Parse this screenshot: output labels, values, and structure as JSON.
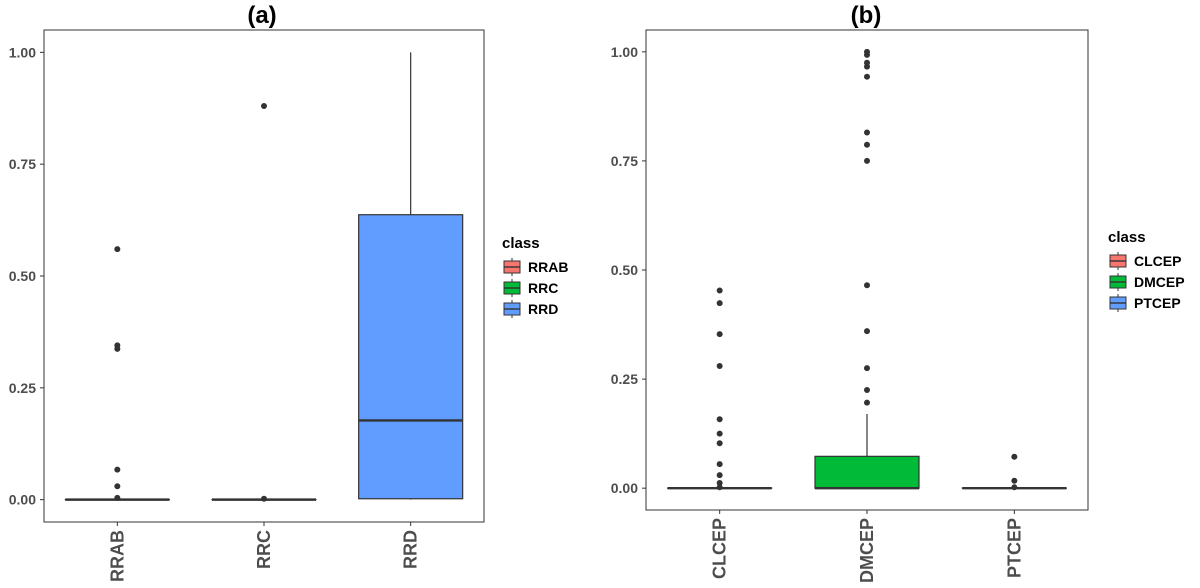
{
  "chart_data": [
    {
      "type": "box",
      "title": "(a)",
      "xlabel": "",
      "ylabel": "",
      "ylim": [
        -0.05,
        1.05
      ],
      "yticks": [
        0,
        0.25,
        0.5,
        0.75,
        1
      ],
      "ytick_labels": [
        "0.00",
        "0.25",
        "0.50",
        "0.75",
        "1.00"
      ],
      "categories": [
        "RRAB",
        "RRC",
        "RRD"
      ],
      "legend_title": "class",
      "legend_position": "right",
      "series": [
        {
          "name": "RRAB",
          "color": "#f8766d",
          "min": 0,
          "q1": 0,
          "median": 0,
          "q3": 0,
          "max": 0,
          "outliers": [
            0.56,
            0.345,
            0.337,
            0.067,
            0.03,
            0.004
          ]
        },
        {
          "name": "RRC",
          "color": "#00ba38",
          "min": 0,
          "q1": 0,
          "median": 0,
          "q3": 0,
          "max": 0,
          "outliers": [
            0.88,
            0.002
          ]
        },
        {
          "name": "RRD",
          "color": "#619cff",
          "min": 0,
          "q1": 0.002,
          "median": 0.177,
          "q3": 0.637,
          "max": 1.0,
          "outliers": []
        }
      ]
    },
    {
      "type": "box",
      "title": "(b)",
      "xlabel": "",
      "ylabel": "",
      "ylim": [
        -0.05,
        1.05
      ],
      "yticks": [
        0,
        0.25,
        0.5,
        0.75,
        1
      ],
      "ytick_labels": [
        "0.00",
        "0.25",
        "0.50",
        "0.75",
        "1.00"
      ],
      "categories": [
        "CLCEP",
        "DMCEP",
        "PTCEP"
      ],
      "legend_title": "class",
      "legend_position": "right",
      "series": [
        {
          "name": "CLCEP",
          "color": "#f8766d",
          "min": 0,
          "q1": 0,
          "median": 0,
          "q3": 0,
          "max": 0,
          "outliers": [
            0.453,
            0.424,
            0.353,
            0.28,
            0.158,
            0.125,
            0.103,
            0.055,
            0.03,
            0.012,
            0.002
          ]
        },
        {
          "name": "DMCEP",
          "color": "#00ba38",
          "min": 0,
          "q1": 0,
          "median": 0,
          "q3": 0.073,
          "max": 0.17,
          "outliers": [
            1.0,
            0.993,
            0.975,
            0.966,
            0.943,
            0.815,
            0.787,
            0.75,
            0.465,
            0.36,
            0.275,
            0.225,
            0.196
          ]
        },
        {
          "name": "PTCEP",
          "color": "#619cff",
          "min": 0,
          "q1": 0,
          "median": 0,
          "q3": 0,
          "max": 0,
          "outliers": [
            0.072,
            0.017,
            0.002
          ]
        }
      ]
    }
  ]
}
